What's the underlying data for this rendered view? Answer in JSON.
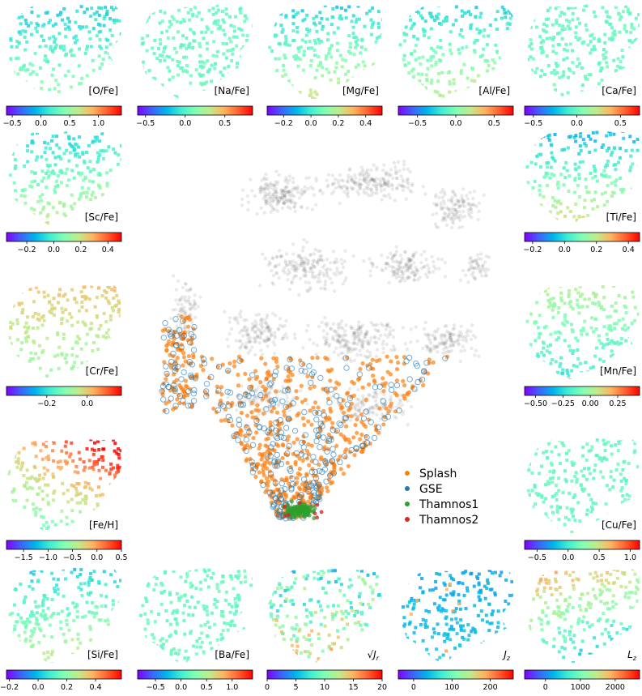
{
  "chart_data": [
    {
      "type": "scatter",
      "series": [
        {
          "name": "Splash",
          "color": "#ff7f0e"
        },
        {
          "name": "GSE",
          "color": "#1f77b4"
        },
        {
          "name": "Thamnos1",
          "color": "#2ca02c"
        },
        {
          "name": "Thamnos2",
          "color": "#d62728"
        }
      ],
      "background_color": "#555555",
      "legend_position": "lower-right"
    },
    {
      "type": "heatmap",
      "label": "[O/Fe]",
      "range": [
        -0.6,
        1.4
      ],
      "ticks": [
        "−0.5",
        "0.0",
        "0.5",
        "1.0"
      ],
      "tick_values": [
        -0.5,
        0.0,
        0.5,
        1.0
      ],
      "trend": "oh"
    },
    {
      "type": "heatmap",
      "label": "[Na/Fe]",
      "range": [
        -0.6,
        0.85
      ],
      "ticks": [
        "−0.5",
        "0.0",
        "0.5"
      ],
      "tick_values": [
        -0.5,
        0.0,
        0.5
      ],
      "trend": "flat"
    },
    {
      "type": "heatmap",
      "label": "[Mg/Fe]",
      "range": [
        -0.32,
        0.52
      ],
      "ticks": [
        "−0.2",
        "0.0",
        "0.2",
        "0.4"
      ],
      "tick_values": [
        -0.2,
        0.0,
        0.2,
        0.4
      ],
      "trend": "mg"
    },
    {
      "type": "heatmap",
      "label": "[Al/Fe]",
      "range": [
        -0.75,
        0.75
      ],
      "ticks": [
        "−0.5",
        "0.0",
        "0.5"
      ],
      "tick_values": [
        -0.5,
        0.0,
        0.5
      ],
      "trend": "mg"
    },
    {
      "type": "heatmap",
      "label": "[Ca/Fe]",
      "range": [
        -0.6,
        0.72
      ],
      "ticks": [
        "−0.5",
        "0.0",
        "0.5"
      ],
      "tick_values": [
        -0.5,
        0.0,
        0.5
      ],
      "trend": "flat"
    },
    {
      "type": "heatmap",
      "label": "[Sc/Fe]",
      "range": [
        -0.35,
        0.5
      ],
      "ticks": [
        "−0.2",
        "0.0",
        "0.2",
        "0.4"
      ],
      "tick_values": [
        -0.2,
        0.0,
        0.2,
        0.4
      ],
      "trend": "mg"
    },
    {
      "type": "heatmap",
      "label": "[Ti/Fe]",
      "range": [
        -0.25,
        0.47
      ],
      "ticks": [
        "−0.2",
        "0.0",
        "0.2",
        "0.4"
      ],
      "tick_values": [
        -0.2,
        0.0,
        0.2,
        0.4
      ],
      "trend": "ti"
    },
    {
      "type": "heatmap",
      "label": "[Cr/Fe]",
      "range": [
        -0.4,
        0.17
      ],
      "ticks": [
        "−0.2",
        "0.0"
      ],
      "tick_values": [
        -0.2,
        0.0
      ],
      "trend": "cr"
    },
    {
      "type": "heatmap",
      "label": "[Mn/Fe]",
      "range": [
        -0.6,
        0.45
      ],
      "ticks": [
        "−0.50",
        "−0.25",
        "0.00",
        "0.25"
      ],
      "tick_values": [
        -0.5,
        -0.25,
        0.0,
        0.25
      ],
      "trend": "mn"
    },
    {
      "type": "heatmap",
      "label": "[Fe/H]",
      "range": [
        -1.85,
        0.5
      ],
      "ticks": [
        "−1.5",
        "−1.0",
        "−0.5",
        "0.0",
        "0.5"
      ],
      "tick_values": [
        -1.5,
        -1.0,
        -0.5,
        0.0,
        0.5
      ],
      "trend": "feh"
    },
    {
      "type": "heatmap",
      "label": "[Cu/Fe]",
      "range": [
        -0.7,
        1.15
      ],
      "ticks": [
        "−0.5",
        "0.0",
        "0.5",
        "1.0"
      ],
      "tick_values": [
        -0.5,
        0.0,
        0.5,
        1.0
      ],
      "trend": "flat"
    },
    {
      "type": "heatmap",
      "label": "[Si/Fe]",
      "range": [
        -0.22,
        0.58
      ],
      "ticks": [
        "−0.2",
        "0.0",
        "0.2",
        "0.4"
      ],
      "tick_values": [
        -0.2,
        0.0,
        0.2,
        0.4
      ],
      "trend": "mg"
    },
    {
      "type": "heatmap",
      "label": "[Ba/Fe]",
      "range": [
        -0.85,
        1.4
      ],
      "ticks": [
        "−0.5",
        "0.0",
        "0.5",
        "1.0"
      ],
      "tick_values": [
        -0.5,
        0.0,
        0.5,
        1.0
      ],
      "trend": "flat"
    },
    {
      "type": "heatmap",
      "label": "√Jr",
      "label_style": "sqrt-subscript-r",
      "range": [
        0,
        20
      ],
      "ticks": [
        "0",
        "5",
        "10",
        "15",
        "20"
      ],
      "tick_values": [
        0,
        5,
        10,
        15,
        20
      ],
      "trend": "noisy"
    },
    {
      "type": "heatmap",
      "label": "Jz",
      "label_style": "italic-subscript-z",
      "range": [
        -40,
        260
      ],
      "ticks": [
        "0",
        "100",
        "200"
      ],
      "tick_values": [
        0,
        100,
        200
      ],
      "trend": "jz"
    },
    {
      "type": "heatmap",
      "label": "Lz",
      "label_style": "italic-subscript-z",
      "range": [
        -600,
        2700
      ],
      "ticks": [
        "0",
        "1000",
        "2000"
      ],
      "tick_values": [
        0,
        1000,
        2000
      ],
      "trend": "lz"
    }
  ]
}
